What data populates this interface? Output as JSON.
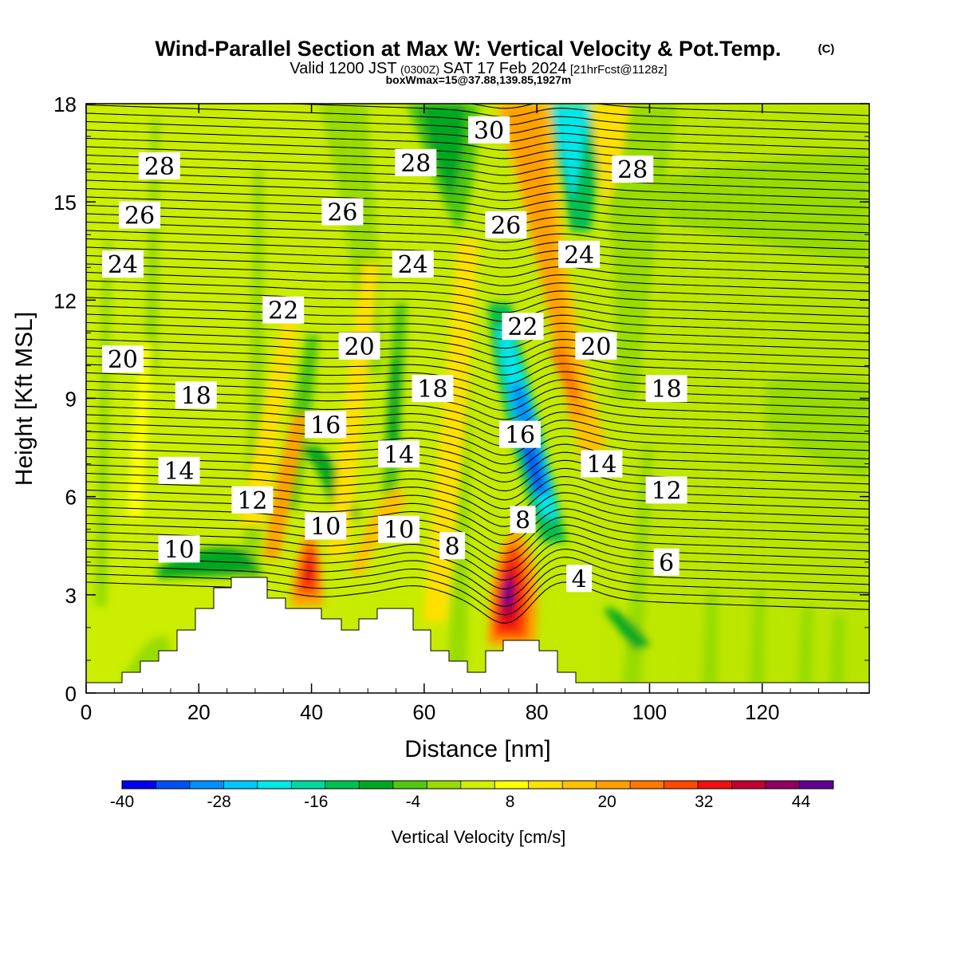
{
  "titles": {
    "main": "Wind-Parallel Section at Max W: Vertical Velocity & Pot.Temp.",
    "copyright": "(C)",
    "valid_a": "Valid 1200 JST",
    "valid_b": "(0300Z)",
    "valid_c": "SAT 17 Feb 2024",
    "valid_d": "[21hrFcst@1128z]",
    "box": "boxWmax=15@37.88,139.85,1927m"
  },
  "chart_data": {
    "type": "heatmap",
    "xlabel": "Distance [nm]",
    "ylabel": "Height [Kft MSL]",
    "xlim": [
      0,
      139
    ],
    "ylim": [
      0,
      18
    ],
    "x_ticks": [
      0,
      20,
      40,
      60,
      80,
      100,
      120
    ],
    "y_ticks": [
      0,
      3,
      6,
      9,
      12,
      15,
      18
    ],
    "colorbar": {
      "label": "Vertical Velocity [cm/s]",
      "range": [
        -40,
        48
      ],
      "ticks": [
        -40,
        -28,
        -16,
        -4,
        8,
        20,
        32,
        44
      ],
      "colors": [
        "#0000f0",
        "#0050f5",
        "#0090f8",
        "#00c8ff",
        "#00e8e8",
        "#00d8a0",
        "#00c050",
        "#00a820",
        "#50c810",
        "#98dc00",
        "#d0f000",
        "#ffff00",
        "#ffe000",
        "#ffc000",
        "#ffa000",
        "#ff7800",
        "#ff4800",
        "#f01010",
        "#c00030",
        "#900060",
        "#600090"
      ]
    },
    "contour_labels": [
      {
        "text": "28",
        "x": 13,
        "y": 16.1
      },
      {
        "text": "26",
        "x": 9.5,
        "y": 14.6
      },
      {
        "text": "24",
        "x": 6.5,
        "y": 13.1
      },
      {
        "text": "20",
        "x": 6.5,
        "y": 10.2
      },
      {
        "text": "18",
        "x": 19.5,
        "y": 9.1
      },
      {
        "text": "14",
        "x": 16.5,
        "y": 6.8
      },
      {
        "text": "12",
        "x": 29.5,
        "y": 5.9
      },
      {
        "text": "10",
        "x": 16.5,
        "y": 4.4
      },
      {
        "text": "22",
        "x": 35,
        "y": 11.7
      },
      {
        "text": "20",
        "x": 48.5,
        "y": 10.6
      },
      {
        "text": "16",
        "x": 42.5,
        "y": 8.2
      },
      {
        "text": "10",
        "x": 42.5,
        "y": 5.1
      },
      {
        "text": "26",
        "x": 45.5,
        "y": 14.7
      },
      {
        "text": "24",
        "x": 58,
        "y": 13.1
      },
      {
        "text": "18",
        "x": 61.5,
        "y": 9.3
      },
      {
        "text": "14",
        "x": 55.5,
        "y": 7.3
      },
      {
        "text": "10",
        "x": 55.5,
        "y": 5.0
      },
      {
        "text": "8",
        "x": 65,
        "y": 4.5
      },
      {
        "text": "28",
        "x": 58.5,
        "y": 16.2
      },
      {
        "text": "30",
        "x": 71.5,
        "y": 17.2
      },
      {
        "text": "26",
        "x": 74.5,
        "y": 14.3
      },
      {
        "text": "22",
        "x": 77.5,
        "y": 11.2
      },
      {
        "text": "16",
        "x": 77,
        "y": 7.9
      },
      {
        "text": "8",
        "x": 77.5,
        "y": 5.3
      },
      {
        "text": "4",
        "x": 87.5,
        "y": 3.5
      },
      {
        "text": "24",
        "x": 87.5,
        "y": 13.4
      },
      {
        "text": "20",
        "x": 90.5,
        "y": 10.6
      },
      {
        "text": "14",
        "x": 91.5,
        "y": 7.0
      },
      {
        "text": "28",
        "x": 97,
        "y": 16.0
      },
      {
        "text": "18",
        "x": 103,
        "y": 9.3
      },
      {
        "text": "12",
        "x": 103,
        "y": 6.2
      },
      {
        "text": "6",
        "x": 103,
        "y": 4.0
      }
    ]
  }
}
